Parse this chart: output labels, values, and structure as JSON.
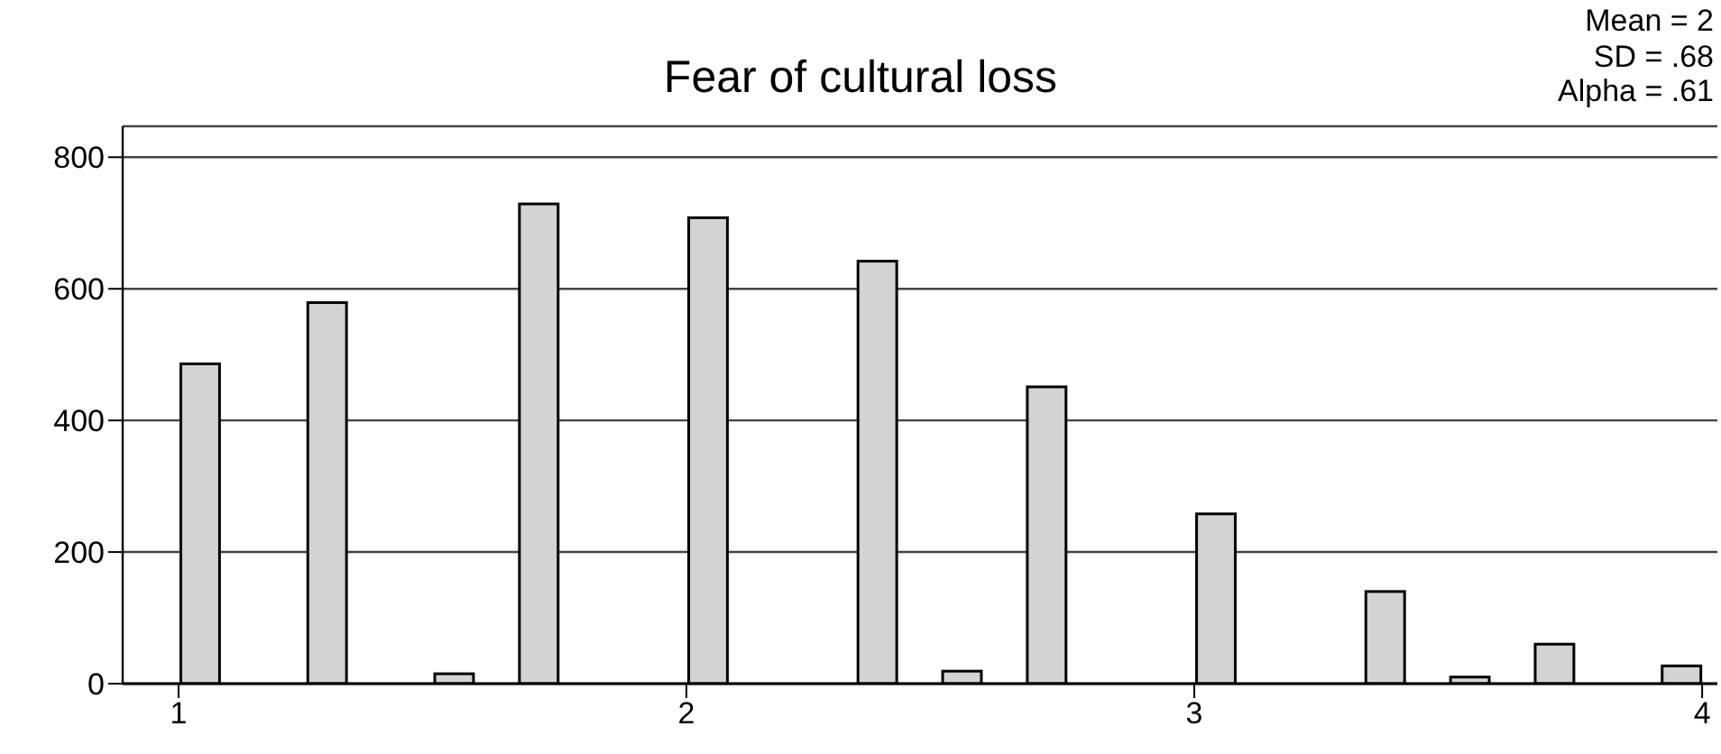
{
  "chart_data": {
    "type": "histogram",
    "title": "Fear of cultural loss",
    "annotations": [
      "Mean = 2",
      "SD = .68",
      "Alpha = .61"
    ],
    "bins": [
      1,
      1.0833,
      1.1667,
      1.25,
      1.3333,
      1.4167,
      1.5,
      1.5833,
      1.6667,
      1.75,
      1.8333,
      1.9167,
      2,
      2.0833,
      2.1667,
      2.25,
      2.3333,
      2.4167,
      2.5,
      2.5833,
      2.6667,
      2.75,
      2.8333,
      2.9167,
      3,
      3.0833,
      3.1667,
      3.25,
      3.3333,
      3.4167,
      3.5,
      3.5833,
      3.6667,
      3.75,
      3.8333,
      3.9167,
      4
    ],
    "values": [
      486,
      0,
      0,
      579,
      0,
      0,
      15,
      0,
      729,
      0,
      0,
      0,
      708,
      0,
      0,
      0,
      642,
      0,
      19,
      0,
      451,
      0,
      0,
      0,
      258,
      0,
      0,
      0,
      140,
      0,
      10,
      0,
      60,
      0,
      0,
      27
    ],
    "color": "#d3d3d3",
    "xlim": [
      0.89,
      4.03
    ],
    "xticks": [
      1,
      2,
      3,
      4
    ],
    "ylim": [
      0,
      847
    ],
    "yticks": [
      0,
      200,
      400,
      600,
      800
    ],
    "grid": "y"
  }
}
